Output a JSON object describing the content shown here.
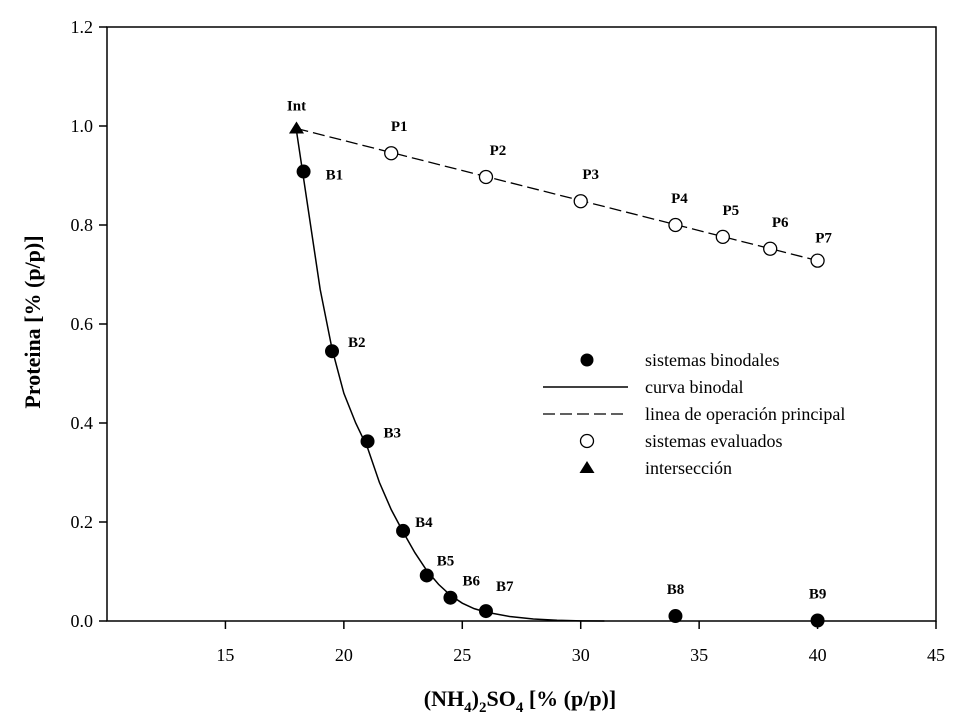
{
  "chart_data": {
    "type": "scatter",
    "xlabel": {
      "prefix": "(NH",
      "sub1": "4",
      "mid": ")",
      "sub2": "2",
      "main": "SO",
      "sub3": "4",
      "suffix": " [% (p/p)]"
    },
    "ylabel": "Proteina [% (p/p)]",
    "xlim": [
      10,
      45
    ],
    "ylim": [
      0,
      1.2
    ],
    "x_ticks": [
      15,
      20,
      25,
      30,
      35,
      40,
      45
    ],
    "x_tick_labels": [
      "15",
      "20",
      "25",
      "30",
      "35",
      "40",
      "45"
    ],
    "y_ticks": [
      0,
      0.2,
      0.4,
      0.6,
      0.8,
      1.0,
      1.2
    ],
    "y_tick_labels": [
      "0.0",
      "0.2",
      "0.4",
      "0.6",
      "0.8",
      "1.0",
      "1.2"
    ],
    "grid": false,
    "legend_position": "center-right",
    "series": [
      {
        "name": "sistemas binodales",
        "marker": "filled-circle",
        "points": [
          {
            "label": "B1",
            "x": 18.3,
            "y": 0.908
          },
          {
            "label": "B2",
            "x": 19.5,
            "y": 0.545
          },
          {
            "label": "B3",
            "x": 21.0,
            "y": 0.363
          },
          {
            "label": "B4",
            "x": 22.5,
            "y": 0.182
          },
          {
            "label": "B5",
            "x": 23.5,
            "y": 0.092
          },
          {
            "label": "B6",
            "x": 24.5,
            "y": 0.047
          },
          {
            "label": "B7",
            "x": 26.0,
            "y": 0.02
          },
          {
            "label": "B8",
            "x": 34.0,
            "y": 0.01
          },
          {
            "label": "B9",
            "x": 40.0,
            "y": 0.001
          }
        ]
      },
      {
        "name": "curva binodal",
        "style": "solid-line",
        "x": [
          18.0,
          18.5,
          19.0,
          19.5,
          20.0,
          20.5,
          21.0,
          21.5,
          22.0,
          22.5,
          23.0,
          23.5,
          24.0,
          24.5,
          25.0,
          25.5,
          26.0,
          27.0,
          28.0,
          29.0,
          30.0,
          31.0
        ],
        "y": [
          0.99,
          0.83,
          0.67,
          0.55,
          0.46,
          0.4,
          0.35,
          0.28,
          0.225,
          0.18,
          0.138,
          0.102,
          0.074,
          0.052,
          0.036,
          0.025,
          0.018,
          0.009,
          0.004,
          0.0015,
          0.0003,
          0.0
        ]
      },
      {
        "name": "linea de operación principal",
        "style": "dashed-line",
        "x": [
          18.0,
          40.0
        ],
        "y": [
          0.995,
          0.728
        ]
      },
      {
        "name": "sistemas evaluados",
        "marker": "open-circle",
        "points": [
          {
            "label": "P1",
            "x": 22.0,
            "y": 0.945
          },
          {
            "label": "P2",
            "x": 26.0,
            "y": 0.897
          },
          {
            "label": "P3",
            "x": 30.0,
            "y": 0.848
          },
          {
            "label": "P4",
            "x": 34.0,
            "y": 0.8
          },
          {
            "label": "P5",
            "x": 36.0,
            "y": 0.776
          },
          {
            "label": "P6",
            "x": 38.0,
            "y": 0.752
          },
          {
            "label": "P7",
            "x": 40.0,
            "y": 0.728
          }
        ]
      },
      {
        "name": "intersección",
        "marker": "filled-triangle",
        "points": [
          {
            "label": "Int",
            "x": 18.0,
            "y": 0.995
          }
        ]
      }
    ]
  }
}
